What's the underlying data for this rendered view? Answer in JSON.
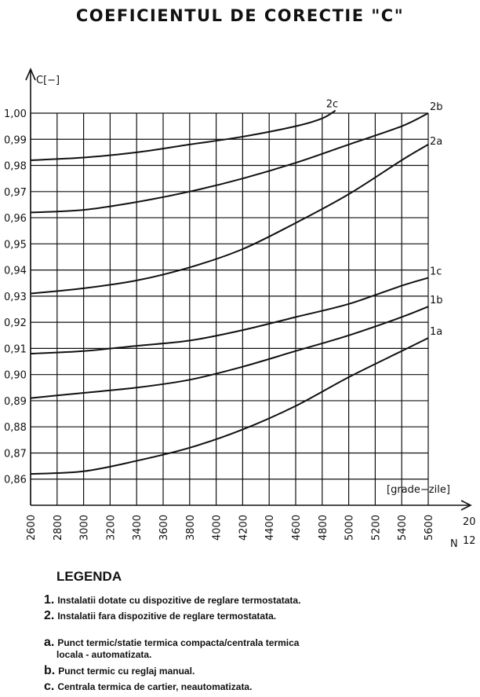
{
  "title": "COEFICIENTUL DE CORECTIE \"C\"",
  "chart_data": {
    "type": "line",
    "ylabel": "C[−]",
    "xlabel_main": "N",
    "xlabel_sup": "20",
    "xlabel_sub": "12",
    "unit_label": "[grade−zile]",
    "xlim": [
      2600,
      5600
    ],
    "ylim": [
      0.85,
      1.0
    ],
    "x_ticks": [
      "2600",
      "2800",
      "3000",
      "3200",
      "3400",
      "3600",
      "3800",
      "4000",
      "4200",
      "4400",
      "4600",
      "4800",
      "5000",
      "5200",
      "5400",
      "5600"
    ],
    "y_ticks": [
      "1,00",
      "0,99",
      "0,98",
      "0,97",
      "0,96",
      "0,95",
      "0,94",
      "0,93",
      "0,92",
      "0,91",
      "0,90",
      "0,89",
      "0,88",
      "0,87",
      "0,86"
    ],
    "grid": true,
    "series": [
      {
        "name": "2c",
        "x": [
          2600,
          3000,
          3400,
          3800,
          4200,
          4600,
          4800,
          4900
        ],
        "y": [
          0.982,
          0.983,
          0.985,
          0.988,
          0.991,
          0.995,
          0.998,
          1.001
        ]
      },
      {
        "name": "2b",
        "x": [
          2600,
          3000,
          3400,
          3800,
          4200,
          4600,
          5000,
          5400,
          5600
        ],
        "y": [
          0.962,
          0.963,
          0.966,
          0.97,
          0.975,
          0.981,
          0.988,
          0.995,
          1.0
        ]
      },
      {
        "name": "2a",
        "x": [
          2600,
          3000,
          3400,
          3800,
          4200,
          4600,
          5000,
          5400,
          5600
        ],
        "y": [
          0.931,
          0.933,
          0.936,
          0.941,
          0.948,
          0.958,
          0.969,
          0.982,
          0.988
        ]
      },
      {
        "name": "1c",
        "x": [
          2600,
          3000,
          3400,
          3800,
          4200,
          4600,
          5000,
          5400,
          5600
        ],
        "y": [
          0.908,
          0.909,
          0.911,
          0.913,
          0.917,
          0.922,
          0.927,
          0.934,
          0.937
        ]
      },
      {
        "name": "1b",
        "x": [
          2600,
          3000,
          3400,
          3800,
          4200,
          4600,
          5000,
          5400,
          5600
        ],
        "y": [
          0.891,
          0.893,
          0.895,
          0.898,
          0.903,
          0.909,
          0.915,
          0.922,
          0.926
        ]
      },
      {
        "name": "1a",
        "x": [
          2600,
          3000,
          3400,
          3800,
          4200,
          4600,
          5000,
          5400,
          5600
        ],
        "y": [
          0.862,
          0.863,
          0.867,
          0.872,
          0.879,
          0.888,
          0.899,
          0.909,
          0.914
        ]
      }
    ]
  },
  "legend": {
    "title": "LEGENDA",
    "items": [
      {
        "key": "1.",
        "text": "Instalatii dotate cu dispozitive de reglare termostatata."
      },
      {
        "key": "2.",
        "text": "Instalatii fara dispozitive de reglare termostatata."
      },
      {
        "key": "a.",
        "text": "Punct termic/statie termica compacta/centrala termica",
        "text2": "locala - automatizata."
      },
      {
        "key": "b.",
        "text": "Punct termic cu reglaj manual."
      },
      {
        "key": "c.",
        "text": "Centrala termica de cartier, neautomatizata."
      }
    ]
  }
}
